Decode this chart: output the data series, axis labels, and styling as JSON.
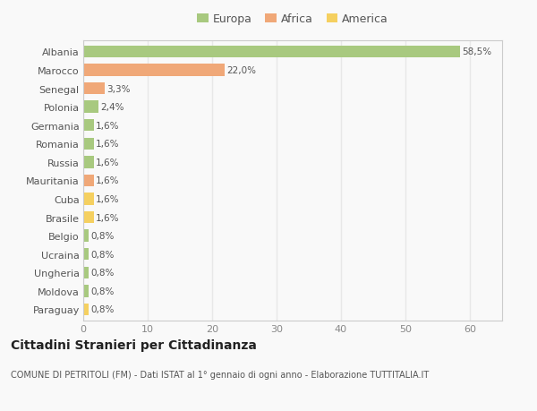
{
  "categories": [
    "Albania",
    "Marocco",
    "Senegal",
    "Polonia",
    "Germania",
    "Romania",
    "Russia",
    "Mauritania",
    "Cuba",
    "Brasile",
    "Belgio",
    "Ucraina",
    "Ungheria",
    "Moldova",
    "Paraguay"
  ],
  "values": [
    58.5,
    22.0,
    3.3,
    2.4,
    1.6,
    1.6,
    1.6,
    1.6,
    1.6,
    1.6,
    0.8,
    0.8,
    0.8,
    0.8,
    0.8
  ],
  "labels": [
    "58,5%",
    "22,0%",
    "3,3%",
    "2,4%",
    "1,6%",
    "1,6%",
    "1,6%",
    "1,6%",
    "1,6%",
    "1,6%",
    "0,8%",
    "0,8%",
    "0,8%",
    "0,8%",
    "0,8%"
  ],
  "colors": [
    "#a8c97f",
    "#f0a878",
    "#f0a878",
    "#a8c97f",
    "#a8c97f",
    "#a8c97f",
    "#a8c97f",
    "#f0a878",
    "#f5d060",
    "#f5d060",
    "#a8c97f",
    "#a8c97f",
    "#a8c97f",
    "#a8c97f",
    "#f5d060"
  ],
  "legend": [
    {
      "label": "Europa",
      "color": "#a8c97f"
    },
    {
      "label": "Africa",
      "color": "#f0a878"
    },
    {
      "label": "America",
      "color": "#f5d060"
    }
  ],
  "xlim": [
    0,
    65
  ],
  "xticks": [
    0,
    10,
    20,
    30,
    40,
    50,
    60
  ],
  "title": "Cittadini Stranieri per Cittadinanza",
  "subtitle": "COMUNE DI PETRITOLI (FM) - Dati ISTAT al 1° gennaio di ogni anno - Elaborazione TUTTITALIA.IT",
  "background_color": "#f9f9f9",
  "grid_color": "#e8e8e8",
  "bar_height": 0.65,
  "label_fontsize": 7.5,
  "ytick_fontsize": 8,
  "xtick_fontsize": 8,
  "title_fontsize": 10,
  "subtitle_fontsize": 7
}
